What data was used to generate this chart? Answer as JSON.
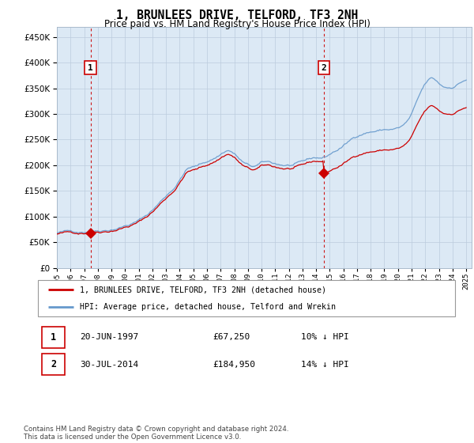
{
  "title": "1, BRUNLEES DRIVE, TELFORD, TF3 2NH",
  "subtitle": "Price paid vs. HM Land Registry's House Price Index (HPI)",
  "ylim": [
    0,
    470000
  ],
  "xlim_start": 1995.0,
  "xlim_end": 2025.4,
  "purchase1_year": 1997.47,
  "purchase1_price": 67250,
  "purchase2_year": 2014.58,
  "purchase2_price": 184950,
  "annotation1_label": "1",
  "annotation2_label": "2",
  "line_color_property": "#cc0000",
  "line_color_hpi": "#6699cc",
  "vline_color": "#cc0000",
  "plot_bg_color": "#dce9f5",
  "legend_label1": "1, BRUNLEES DRIVE, TELFORD, TF3 2NH (detached house)",
  "legend_label2": "HPI: Average price, detached house, Telford and Wrekin",
  "table_row1": [
    "1",
    "20-JUN-1997",
    "£67,250",
    "10% ↓ HPI"
  ],
  "table_row2": [
    "2",
    "30-JUL-2014",
    "£184,950",
    "14% ↓ HPI"
  ],
  "footnote": "Contains HM Land Registry data © Crown copyright and database right 2024.\nThis data is licensed under the Open Government Licence v3.0.",
  "background_color": "#ffffff",
  "grid_color": "#bbccdd"
}
